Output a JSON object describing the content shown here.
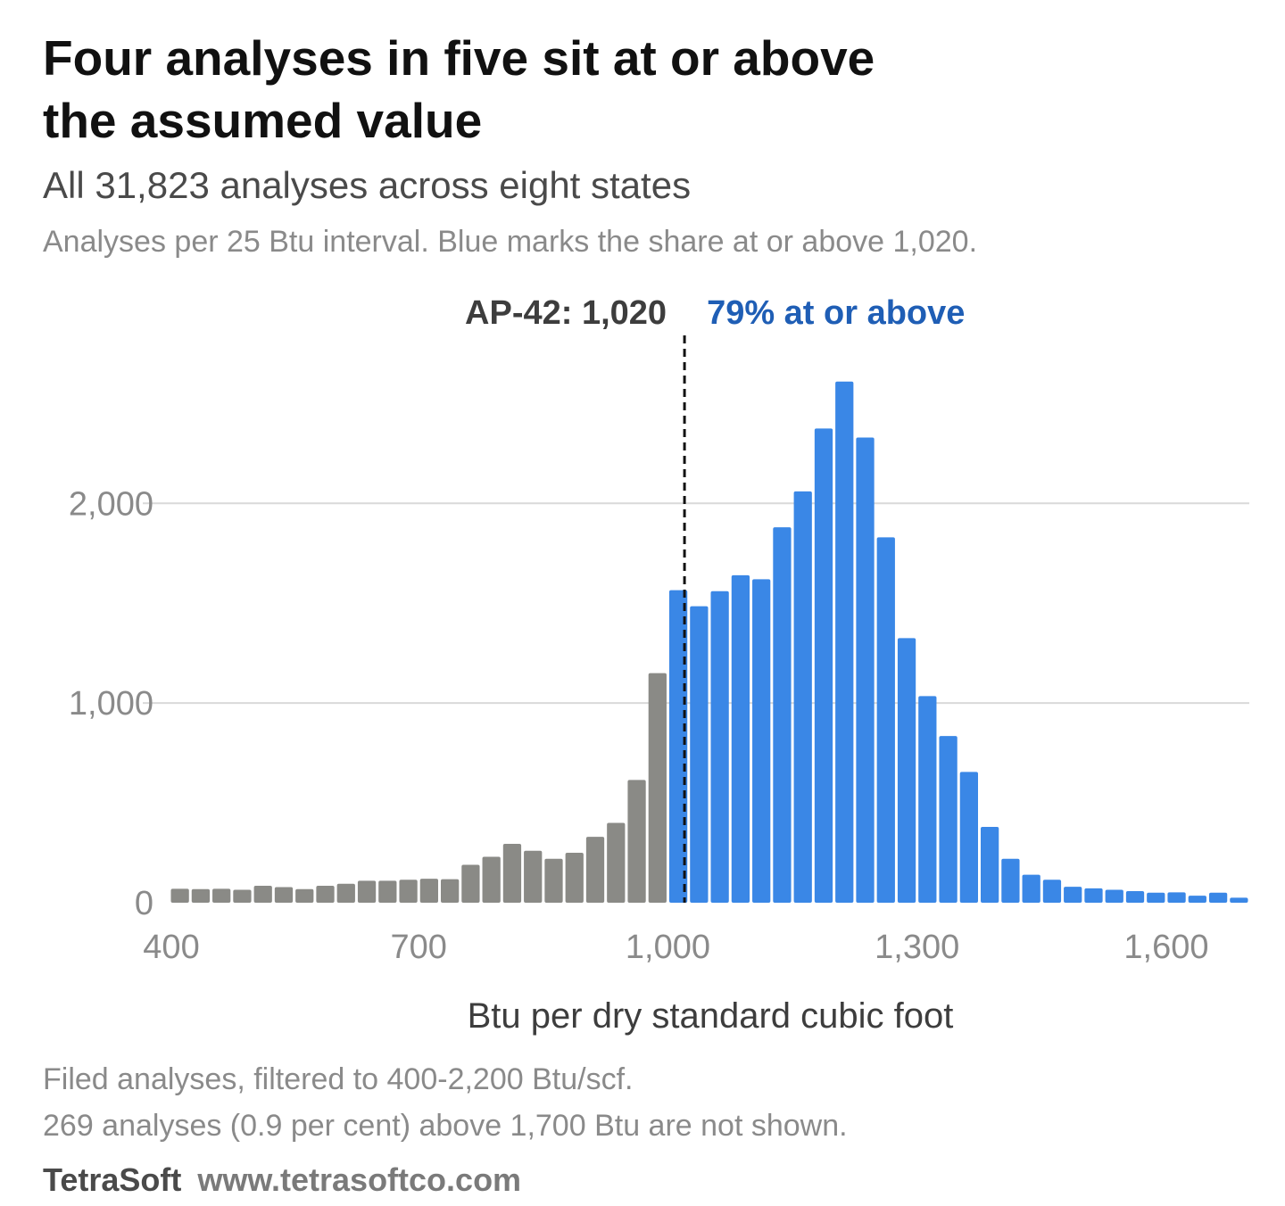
{
  "header": {
    "title_line1": "Four analyses in five sit at or above",
    "title_line2": "the assumed value",
    "subtitle": "All 31,823 analyses across eight states",
    "description": "Analyses per 25 Btu interval. Blue marks the share at or above 1,020."
  },
  "footer": {
    "note_line1": "Filed analyses, filtered to 400-2,200 Btu/scf.",
    "note_line2": "269 analyses (0.9 per cent) above 1,700 Btu are not shown.",
    "brand": "TetraSoft",
    "url": "www.tetrasoftco.com"
  },
  "chart_data": {
    "type": "bar",
    "xlabel": "Btu per dry standard cubic foot",
    "ylabel": "",
    "xlim": [
      400,
      1700
    ],
    "ylim": [
      0,
      2600
    ],
    "bin_width": 25,
    "x_ticks": [
      400,
      700,
      1000,
      1300,
      1600
    ],
    "x_tick_labels": [
      "400",
      "700",
      "1,000",
      "1,300",
      "1,600"
    ],
    "y_ticks": [
      0,
      1000,
      2000
    ],
    "y_tick_labels": [
      "0",
      "1,000",
      "2,000"
    ],
    "grid": "horizontal",
    "threshold": {
      "value": 1020,
      "label": "AP-42: 1,020",
      "share_label": "79% at or above"
    },
    "colors": {
      "below": "#8a8a86",
      "at_or_above": "#3a87e6",
      "threshold_line": "#111111",
      "share_label": "#1f5eb5",
      "gridline": "#d9d9d9"
    },
    "bins": [
      {
        "x": 400,
        "value": 70,
        "group": "below"
      },
      {
        "x": 425,
        "value": 68,
        "group": "below"
      },
      {
        "x": 450,
        "value": 70,
        "group": "below"
      },
      {
        "x": 475,
        "value": 65,
        "group": "below"
      },
      {
        "x": 500,
        "value": 85,
        "group": "below"
      },
      {
        "x": 525,
        "value": 78,
        "group": "below"
      },
      {
        "x": 550,
        "value": 68,
        "group": "below"
      },
      {
        "x": 575,
        "value": 85,
        "group": "below"
      },
      {
        "x": 600,
        "value": 95,
        "group": "below"
      },
      {
        "x": 625,
        "value": 110,
        "group": "below"
      },
      {
        "x": 650,
        "value": 110,
        "group": "below"
      },
      {
        "x": 675,
        "value": 115,
        "group": "below"
      },
      {
        "x": 700,
        "value": 120,
        "group": "below"
      },
      {
        "x": 725,
        "value": 118,
        "group": "below"
      },
      {
        "x": 750,
        "value": 190,
        "group": "below"
      },
      {
        "x": 775,
        "value": 230,
        "group": "below"
      },
      {
        "x": 800,
        "value": 295,
        "group": "below"
      },
      {
        "x": 825,
        "value": 260,
        "group": "below"
      },
      {
        "x": 850,
        "value": 220,
        "group": "below"
      },
      {
        "x": 875,
        "value": 250,
        "group": "below"
      },
      {
        "x": 900,
        "value": 330,
        "group": "below"
      },
      {
        "x": 925,
        "value": 400,
        "group": "below"
      },
      {
        "x": 950,
        "value": 615,
        "group": "below"
      },
      {
        "x": 975,
        "value": 1150,
        "group": "below"
      },
      {
        "x": 1000,
        "value": 1565,
        "group": "at_or_above"
      },
      {
        "x": 1025,
        "value": 1485,
        "group": "at_or_above"
      },
      {
        "x": 1050,
        "value": 1560,
        "group": "at_or_above"
      },
      {
        "x": 1075,
        "value": 1640,
        "group": "at_or_above"
      },
      {
        "x": 1100,
        "value": 1620,
        "group": "at_or_above"
      },
      {
        "x": 1125,
        "value": 1880,
        "group": "at_or_above"
      },
      {
        "x": 1150,
        "value": 2060,
        "group": "at_or_above"
      },
      {
        "x": 1175,
        "value": 2375,
        "group": "at_or_above"
      },
      {
        "x": 1200,
        "value": 2610,
        "group": "at_or_above"
      },
      {
        "x": 1225,
        "value": 2330,
        "group": "at_or_above"
      },
      {
        "x": 1250,
        "value": 1830,
        "group": "at_or_above"
      },
      {
        "x": 1275,
        "value": 1325,
        "group": "at_or_above"
      },
      {
        "x": 1300,
        "value": 1035,
        "group": "at_or_above"
      },
      {
        "x": 1325,
        "value": 835,
        "group": "at_or_above"
      },
      {
        "x": 1350,
        "value": 655,
        "group": "at_or_above"
      },
      {
        "x": 1375,
        "value": 380,
        "group": "at_or_above"
      },
      {
        "x": 1400,
        "value": 220,
        "group": "at_or_above"
      },
      {
        "x": 1425,
        "value": 140,
        "group": "at_or_above"
      },
      {
        "x": 1450,
        "value": 115,
        "group": "at_or_above"
      },
      {
        "x": 1475,
        "value": 80,
        "group": "at_or_above"
      },
      {
        "x": 1500,
        "value": 72,
        "group": "at_or_above"
      },
      {
        "x": 1525,
        "value": 65,
        "group": "at_or_above"
      },
      {
        "x": 1550,
        "value": 58,
        "group": "at_or_above"
      },
      {
        "x": 1575,
        "value": 50,
        "group": "at_or_above"
      },
      {
        "x": 1600,
        "value": 52,
        "group": "at_or_above"
      },
      {
        "x": 1625,
        "value": 35,
        "group": "at_or_above"
      },
      {
        "x": 1650,
        "value": 50,
        "group": "at_or_above"
      },
      {
        "x": 1675,
        "value": 25,
        "group": "at_or_above"
      }
    ]
  }
}
